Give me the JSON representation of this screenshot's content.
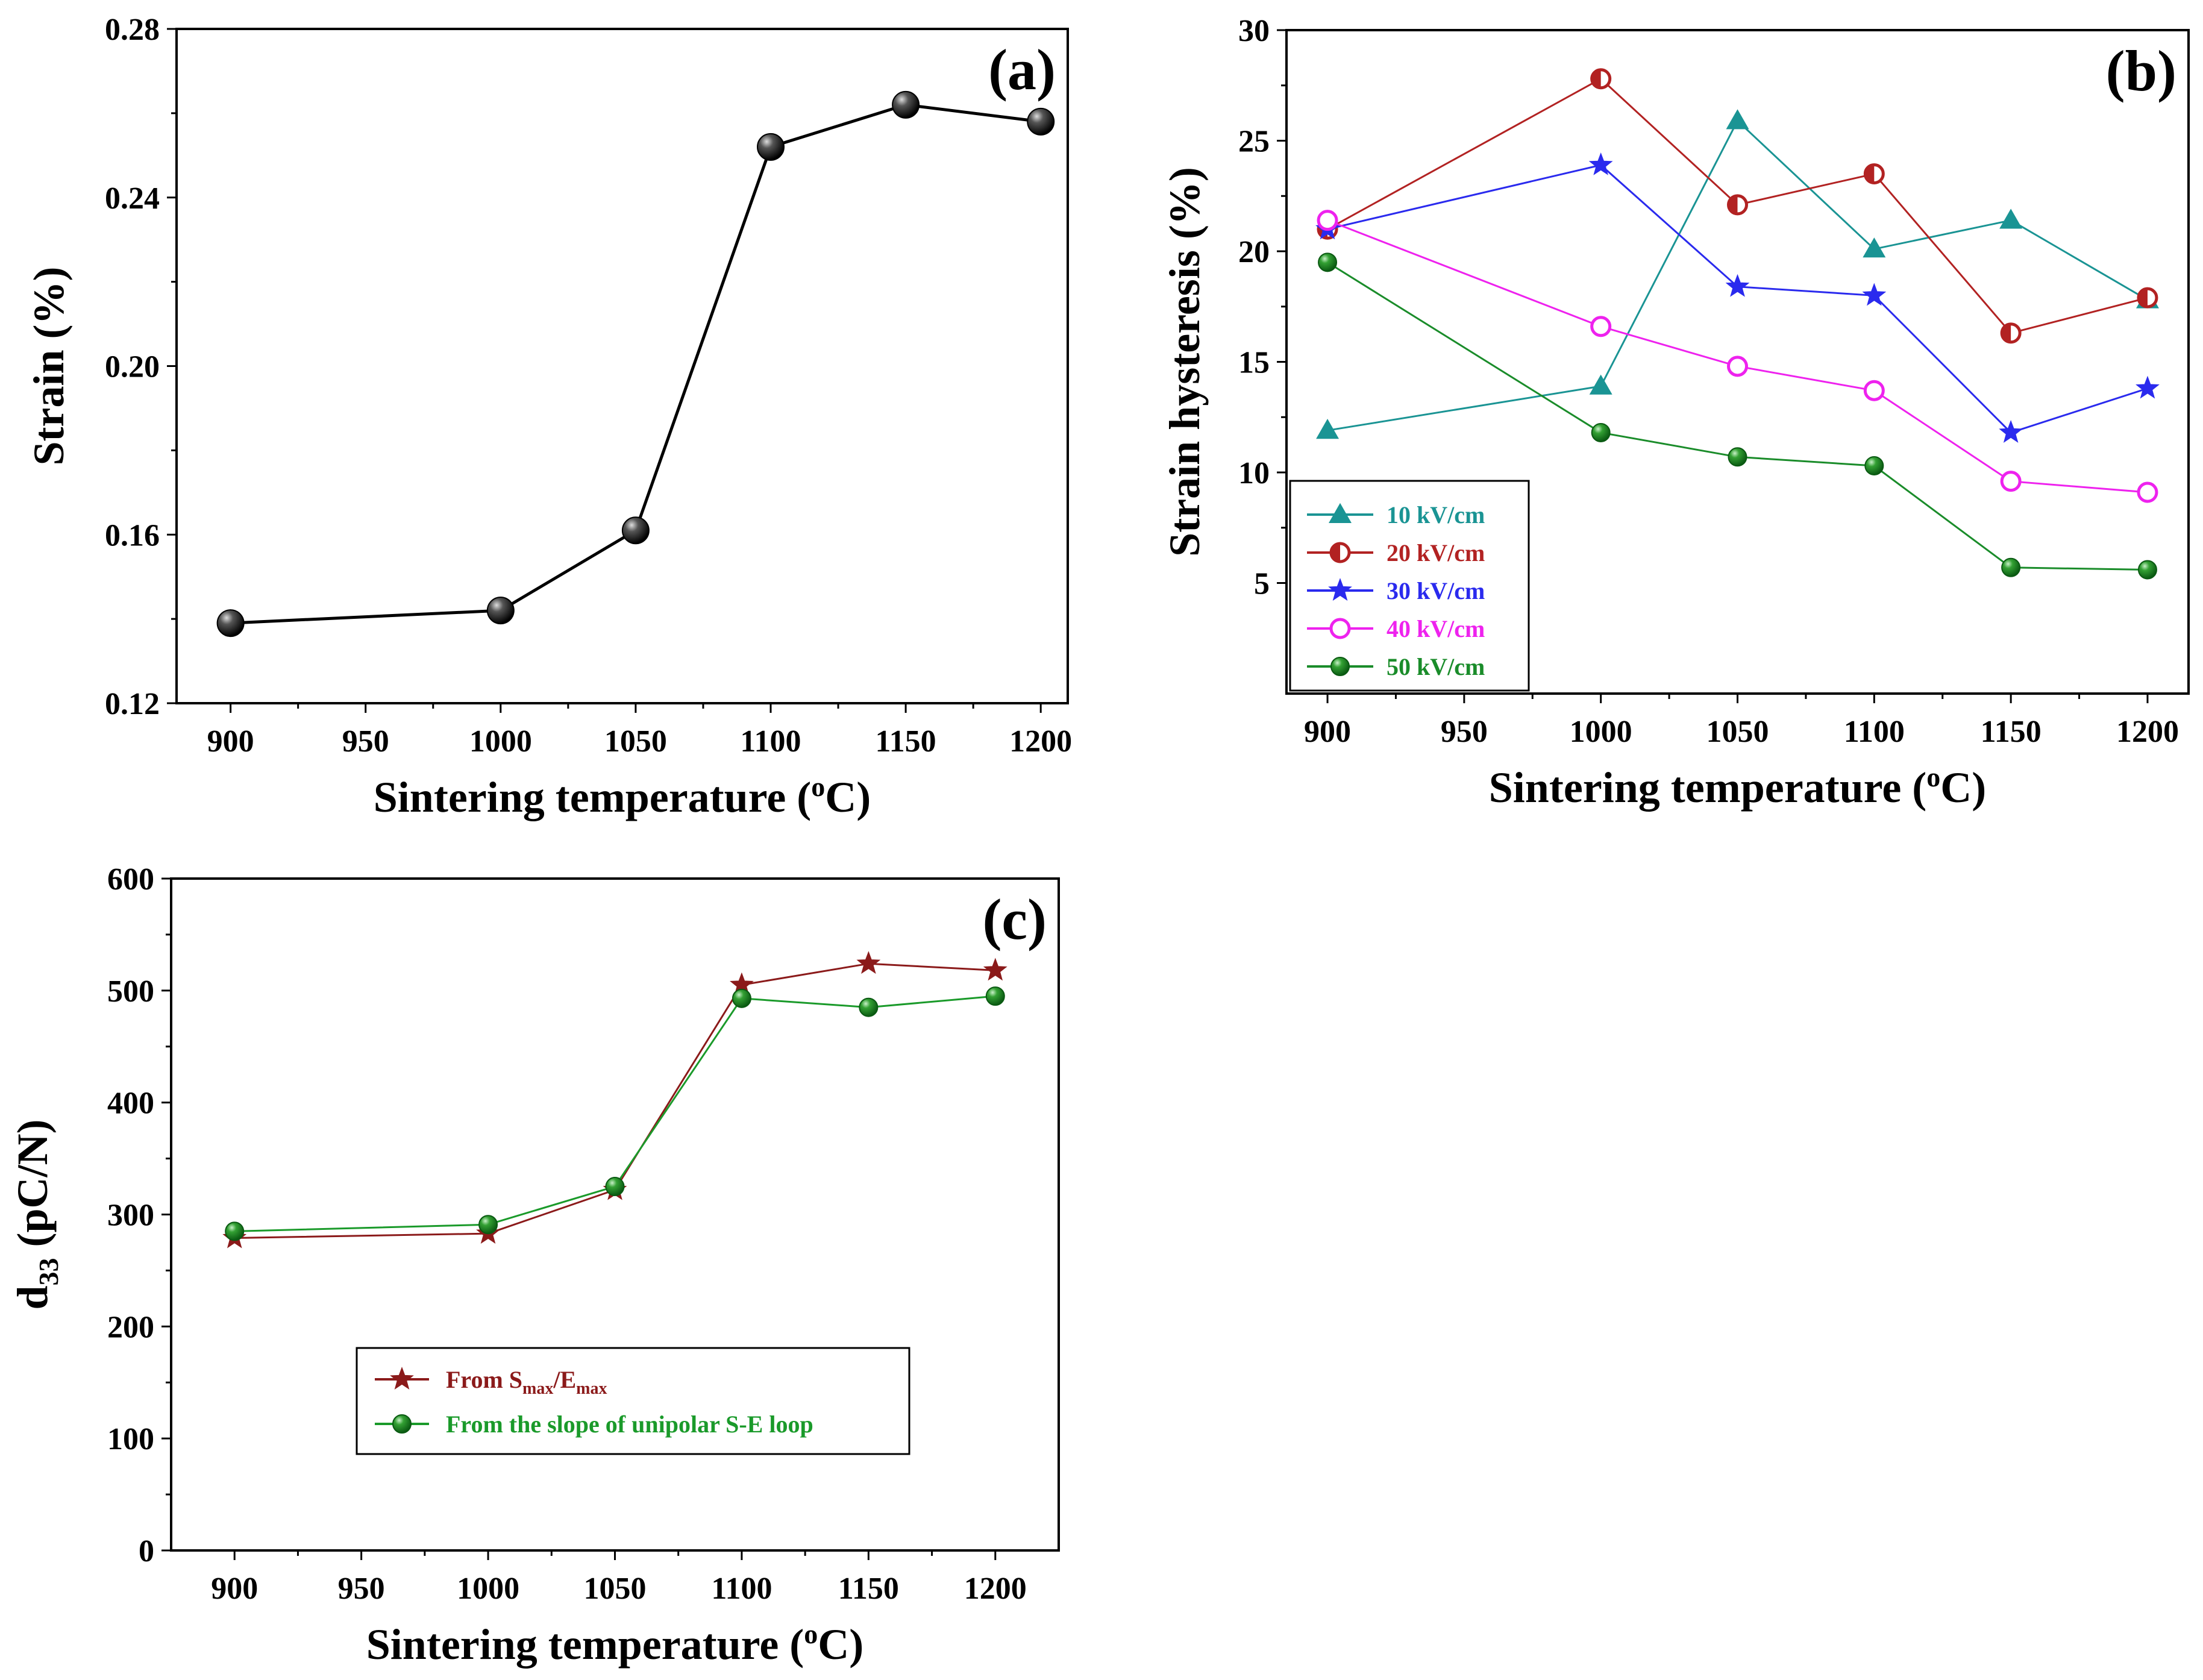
{
  "chart_data": [
    {
      "type": "line",
      "panel_label": "(a)",
      "xlabel": "Sintering temperature",
      "xlabel_unit": "(°C)",
      "ylabel": "Strain (%)",
      "xlim": [
        880,
        1210
      ],
      "ylim": [
        0.12,
        0.28
      ],
      "x_ticks": [
        900,
        950,
        1000,
        1050,
        1100,
        1150,
        1200
      ],
      "y_ticks": [
        0.12,
        0.16,
        0.2,
        0.24,
        0.28
      ],
      "y_tick_labels": [
        "0.12",
        "0.16",
        "0.20",
        "0.24",
        "0.28"
      ],
      "legend": "none",
      "series": [
        {
          "x": [
            900,
            1000,
            1050,
            1100,
            1150,
            1200
          ],
          "values": [
            0.139,
            0.142,
            0.161,
            0.252,
            0.262,
            0.258
          ],
          "color": "#000000",
          "marker": "sphere"
        }
      ]
    },
    {
      "type": "line",
      "panel_label": "(b)",
      "xlabel": "Sintering temperature",
      "xlabel_unit": "(°C)",
      "ylabel": "Strain hysteresis (%)",
      "xlim": [
        885,
        1215
      ],
      "ylim": [
        0,
        30
      ],
      "x_ticks": [
        900,
        950,
        1000,
        1050,
        1100,
        1150,
        1200
      ],
      "y_ticks": [
        5,
        10,
        15,
        20,
        25,
        30
      ],
      "legend": "bottom-left",
      "series": [
        {
          "name": "10 kV/cm",
          "color": "#1a9494",
          "marker": "triangle",
          "x": [
            900,
            1000,
            1050,
            1100,
            1150,
            1200
          ],
          "values": [
            11.9,
            13.9,
            25.9,
            20.1,
            21.4,
            17.8
          ]
        },
        {
          "name": "20 kV/cm",
          "color": "#b22222",
          "marker": "half-circle",
          "x": [
            900,
            1000,
            1050,
            1100,
            1150,
            1200
          ],
          "values": [
            21.0,
            27.8,
            22.1,
            23.5,
            16.3,
            17.9
          ]
        },
        {
          "name": "30 kV/cm",
          "color": "#2a2aee",
          "marker": "star",
          "x": [
            900,
            1000,
            1050,
            1100,
            1150,
            1200
          ],
          "values": [
            21.0,
            23.9,
            18.4,
            18.0,
            11.8,
            13.8
          ]
        },
        {
          "name": "40 kV/cm",
          "color": "#ee22ee",
          "marker": "open-circle",
          "x": [
            900,
            1000,
            1050,
            1100,
            1150,
            1200
          ],
          "values": [
            21.4,
            16.6,
            14.8,
            13.7,
            9.6,
            9.1
          ]
        },
        {
          "name": "50 kV/cm",
          "color": "#1a8c2a",
          "marker": "ball",
          "x": [
            900,
            1000,
            1050,
            1100,
            1150,
            1200
          ],
          "values": [
            19.5,
            11.8,
            10.7,
            10.3,
            5.7,
            5.6
          ]
        }
      ]
    },
    {
      "type": "line",
      "panel_label": "(c)",
      "xlabel": "Sintering temperature",
      "xlabel_unit": "(°C)",
      "ylabel": "d33 (pC/N)",
      "xlim": [
        875,
        1225
      ],
      "ylim": [
        0,
        600
      ],
      "x_ticks": [
        900,
        950,
        1000,
        1050,
        1100,
        1150,
        1200
      ],
      "y_ticks": [
        0,
        100,
        200,
        300,
        400,
        500,
        600
      ],
      "legend": "center-left",
      "series": [
        {
          "name": "From Smax/Emax",
          "color": "#8b1a1a",
          "marker": "star",
          "x": [
            900,
            1000,
            1050,
            1100,
            1150,
            1200
          ],
          "values": [
            279,
            283,
            322,
            505,
            524,
            518
          ]
        },
        {
          "name": "From the slope of unipolar S-E  loop",
          "color": "#1a9a2a",
          "marker": "ball",
          "x": [
            900,
            1000,
            1050,
            1100,
            1150,
            1200
          ],
          "values": [
            285,
            291,
            325,
            493,
            485,
            495
          ]
        }
      ]
    }
  ]
}
